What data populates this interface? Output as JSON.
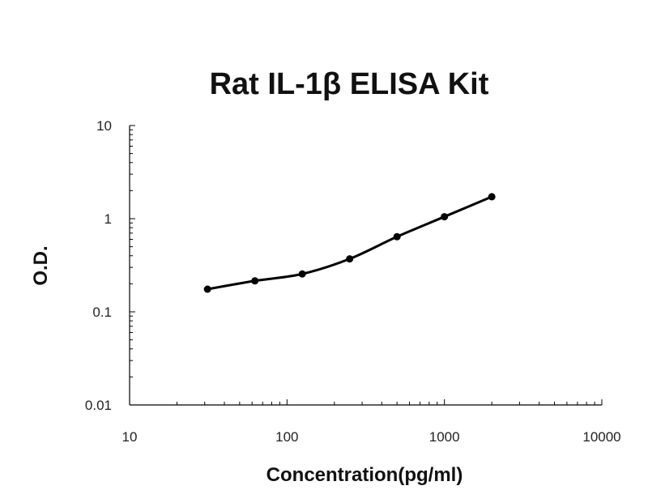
{
  "chart_data": {
    "type": "scatter",
    "title": "Rat IL-1β ELISA Kit",
    "xlabel": "Concentration(pg/ml)",
    "ylabel": "O.D.",
    "xscale": "log",
    "yscale": "log",
    "xlim": [
      10,
      10000
    ],
    "ylim": [
      0.01,
      10
    ],
    "x_ticks": [
      "10",
      "100",
      "1000",
      "10000"
    ],
    "y_ticks": [
      "0.01",
      "0.1",
      "1",
      "10"
    ],
    "grid": false,
    "legend": "none",
    "line_color": "#000000",
    "marker_color": "#000000",
    "series": [
      {
        "x": [
          31.25,
          62.5,
          125,
          250,
          500,
          1000,
          2000
        ],
        "y": [
          0.175,
          0.215,
          0.255,
          0.37,
          0.64,
          1.05,
          1.72
        ],
        "fit_line": "smooth"
      }
    ]
  }
}
